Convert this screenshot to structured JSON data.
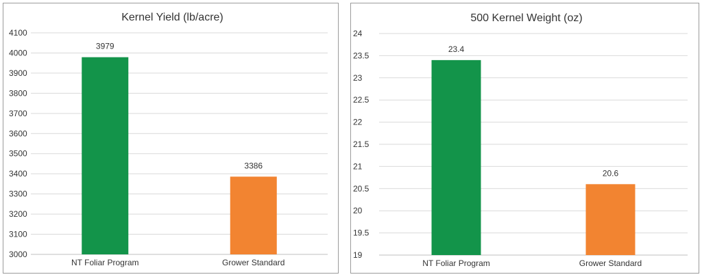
{
  "colors": {
    "green": "#13944a",
    "orange": "#f28431"
  },
  "chart_data": [
    {
      "type": "bar",
      "title": "Kernel Yield (lb/acre)",
      "categories": [
        "NT Foliar Program",
        "Grower Standard"
      ],
      "values": [
        3979,
        3386
      ],
      "data_labels": [
        "3979",
        "3386"
      ],
      "colors": [
        "#13944a",
        "#f28431"
      ],
      "ylim": [
        3000,
        4100
      ],
      "yticks": [
        "3000",
        "3100",
        "3200",
        "3300",
        "3400",
        "3500",
        "3600",
        "3700",
        "3800",
        "3900",
        "4000",
        "4100"
      ],
      "grid": true,
      "legend": "none"
    },
    {
      "type": "bar",
      "title": "500 Kernel Weight (oz)",
      "categories": [
        "NT Foliar Program",
        "Grower Standard"
      ],
      "values": [
        23.4,
        20.6
      ],
      "data_labels": [
        "23.4",
        "20.6"
      ],
      "colors": [
        "#13944a",
        "#f28431"
      ],
      "ylim": [
        19,
        24
      ],
      "yticks": [
        "19",
        "19.5",
        "20",
        "20.5",
        "21",
        "21.5",
        "22",
        "22.5",
        "23",
        "23.5",
        "24"
      ],
      "grid": true,
      "legend": "none"
    }
  ]
}
